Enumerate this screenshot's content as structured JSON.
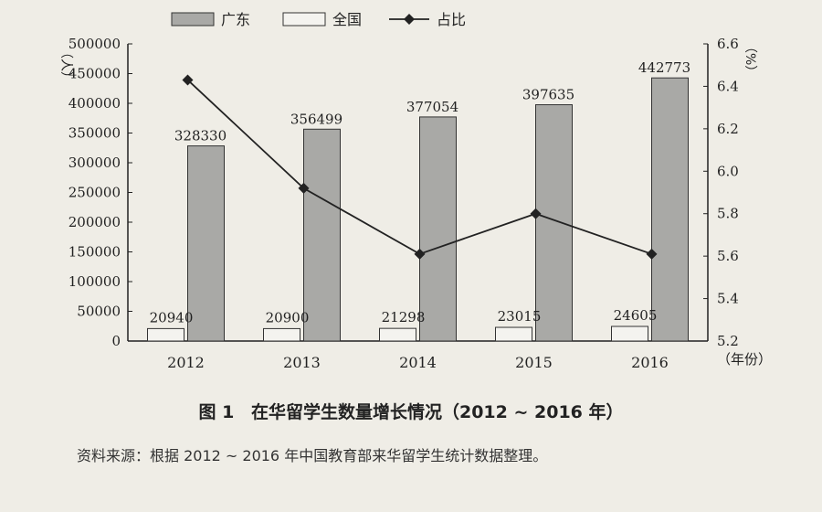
{
  "chart_data": {
    "type": "bar",
    "categories": [
      "2012",
      "2013",
      "2014",
      "2015",
      "2016"
    ],
    "series": [
      {
        "name": "广东",
        "kind": "bar",
        "values": [
          328330,
          356499,
          377054,
          397635,
          442773
        ],
        "color": "#a9a9a6"
      },
      {
        "name": "全国",
        "kind": "bar",
        "values": [
          20940,
          20900,
          21298,
          23015,
          24605
        ],
        "color": "#f4f3ef"
      },
      {
        "name": "占比",
        "kind": "line",
        "axis": "right",
        "values": [
          6.43,
          5.92,
          5.61,
          5.8,
          5.61
        ],
        "color": "#222222"
      }
    ],
    "bar_labels": [
      [
        "328330",
        "356499",
        "377054",
        "397635",
        "442773"
      ],
      [
        "20940",
        "20900",
        "21298",
        "23015",
        "24605"
      ]
    ],
    "ylim": [
      0,
      500000
    ],
    "yticks": [
      "0",
      "50000",
      "100000",
      "150000",
      "200000",
      "250000",
      "300000",
      "350000",
      "400000",
      "450000",
      "500000"
    ],
    "y2lim": [
      5.2,
      6.6
    ],
    "y2ticks": [
      "5.2",
      "5.4",
      "5.6",
      "5.8",
      "6.0",
      "6.2",
      "6.4",
      "6.6"
    ],
    "ylabel": "（人）",
    "y2label": "（%）",
    "xlabel": "（年份）",
    "legend_position": "top"
  },
  "caption": {
    "number": "图 1",
    "text": "在华留学生数量增长情况（2012 ~ 2016 年）"
  },
  "source_note": "资料来源：根据 2012 ~ 2016 年中国教育部来华留学生统计数据整理。"
}
